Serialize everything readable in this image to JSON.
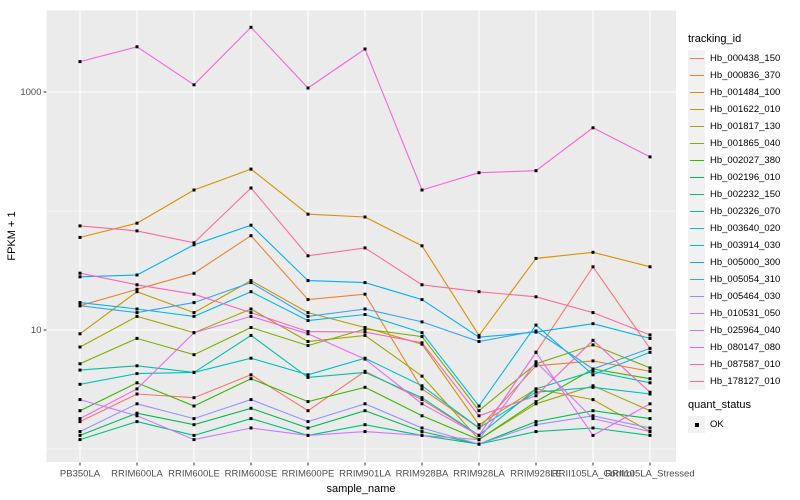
{
  "figure": {
    "background": "#FFFFFF",
    "panel_background": "#EBEBEB",
    "gridline_color": "#FFFFFF",
    "axis_text_color": "#4D4D4D",
    "tick_mark_color": "#333333",
    "point_color": "#000000"
  },
  "chart_data": {
    "type": "line",
    "title": "",
    "xlabel": "sample_name",
    "ylabel": "FPKM + 1",
    "y_scale": "log10",
    "y_ticks": [
      {
        "value": 10,
        "label": "10"
      },
      {
        "value": 1000,
        "label": "1000"
      }
    ],
    "y_minor_gridlines": [
      1,
      100
    ],
    "y_range_approx": [
      0.8,
      4800
    ],
    "grid": true,
    "legend_position": "right",
    "categories": [
      "PB350LA",
      "RRIM600LA",
      "RRIM600LE",
      "RRIM600SE",
      "RRIM600PE",
      "RRIM901LA",
      "RRIM928BA",
      "RRIM928LA",
      "RRIM928LE",
      "RRII105LA_Control",
      "RRII105LA_Stressed"
    ],
    "series": [
      {
        "name": "Hb_000438_150",
        "color": "#F8766D",
        "values": [
          1.7,
          2.9,
          2.7,
          4.2,
          2.1,
          4.5,
          2.6,
          1.3,
          6.5,
          34,
          7
        ]
      },
      {
        "name": "Hb_000836_370",
        "color": "#EA8331",
        "values": [
          16,
          22,
          30,
          62,
          18,
          20,
          3.2,
          1.5,
          5.0,
          5.5,
          4.5
        ]
      },
      {
        "name": "Hb_001484_100",
        "color": "#D89000",
        "values": [
          60,
          79,
          150,
          225,
          94,
          89,
          51,
          9,
          40,
          45,
          34
        ]
      },
      {
        "name": "Hb_001622_010",
        "color": "#C09B00",
        "values": [
          9.3,
          21,
          14,
          26,
          14,
          10.5,
          7.6,
          1.6,
          3.2,
          2.6,
          1.4
        ]
      },
      {
        "name": "Hb_001817_130",
        "color": "#A3A500",
        "values": [
          7.2,
          13,
          9.5,
          15,
          8.0,
          9.0,
          4.1,
          1.2,
          2.4,
          3.4,
          2.1
        ]
      },
      {
        "name": "Hb_001865_040",
        "color": "#7CAE00",
        "values": [
          5.2,
          8.5,
          6.2,
          10.5,
          7.4,
          10.2,
          8.8,
          2.1,
          5.2,
          7.5,
          4.8
        ]
      },
      {
        "name": "Hb_002027_380",
        "color": "#39B600",
        "values": [
          2.1,
          3.6,
          2.3,
          3.9,
          2.5,
          3.3,
          1.9,
          1.2,
          2.5,
          4.7,
          3.9
        ]
      },
      {
        "name": "Hb_002196_010",
        "color": "#00BB4E",
        "values": [
          1.3,
          2.0,
          1.6,
          2.2,
          1.5,
          2.1,
          1.4,
          1.1,
          1.7,
          2.1,
          1.8
        ]
      },
      {
        "name": "Hb_002232_150",
        "color": "#00BF7D",
        "values": [
          1.2,
          1.7,
          1.3,
          1.8,
          1.3,
          1.6,
          1.3,
          1.1,
          1.4,
          1.5,
          1.3
        ]
      },
      {
        "name": "Hb_002326_070",
        "color": "#00C1A3",
        "values": [
          4.6,
          5.0,
          4.4,
          9.0,
          4.0,
          4.4,
          2.7,
          1.3,
          3.2,
          4.5,
          3.6
        ]
      },
      {
        "name": "Hb_003640_020",
        "color": "#00BFC4",
        "values": [
          3.5,
          4.3,
          4.4,
          5.8,
          4.2,
          5.8,
          3.4,
          1.5,
          3.0,
          3.3,
          2.9
        ]
      },
      {
        "name": "Hb_003914_030",
        "color": "#00BADE",
        "values": [
          17,
          15,
          13,
          21,
          12,
          13.5,
          9.5,
          2.3,
          11,
          4.2,
          6.5
        ]
      },
      {
        "name": "Hb_005000_300",
        "color": "#00B0F6",
        "values": [
          28,
          29,
          52,
          76,
          26,
          25,
          18,
          8.7,
          9.6,
          11.3,
          8.5
        ]
      },
      {
        "name": "Hb_005054_310",
        "color": "#35A2FF",
        "values": [
          16,
          14,
          17,
          25,
          13,
          15,
          11.7,
          8.0,
          9.8,
          4.7,
          7.0
        ]
      },
      {
        "name": "Hb_005464_030",
        "color": "#9590FF",
        "values": [
          1.4,
          2.4,
          1.8,
          2.6,
          1.7,
          2.4,
          1.5,
          1.1,
          1.6,
          1.9,
          1.5
        ]
      },
      {
        "name": "Hb_010531_050",
        "color": "#C77CFF",
        "values": [
          2.6,
          1.9,
          1.2,
          1.5,
          1.3,
          1.4,
          1.3,
          1.2,
          5.4,
          1.8,
          1.4
        ]
      },
      {
        "name": "Hb_025964_040",
        "color": "#E76BF3",
        "values": [
          1.8,
          3.2,
          9.5,
          13,
          9.3,
          5.7,
          2.4,
          1.3,
          6.5,
          1.3,
          2.4
        ]
      },
      {
        "name": "Hb_080147_080",
        "color": "#FA62DB",
        "values": [
          1800,
          2400,
          1150,
          3500,
          1080,
          2300,
          150,
          210,
          218,
          500,
          285
        ]
      },
      {
        "name": "Hb_087587_010",
        "color": "#FF62BC",
        "values": [
          30,
          24,
          20,
          14,
          9.7,
          9.6,
          7.8,
          1.9,
          2.8,
          8.2,
          3.0
        ]
      },
      {
        "name": "Hb_178127_010",
        "color": "#FF6A98",
        "values": [
          75,
          68,
          54,
          156,
          42,
          49,
          24,
          21,
          19,
          14,
          9.1
        ]
      }
    ],
    "legend": {
      "tracking_id_title": "tracking_id",
      "quant_status_title": "quant_status",
      "quant_status_items": [
        {
          "label": "OK",
          "shape": "filled-square",
          "color": "#000000"
        }
      ]
    }
  }
}
